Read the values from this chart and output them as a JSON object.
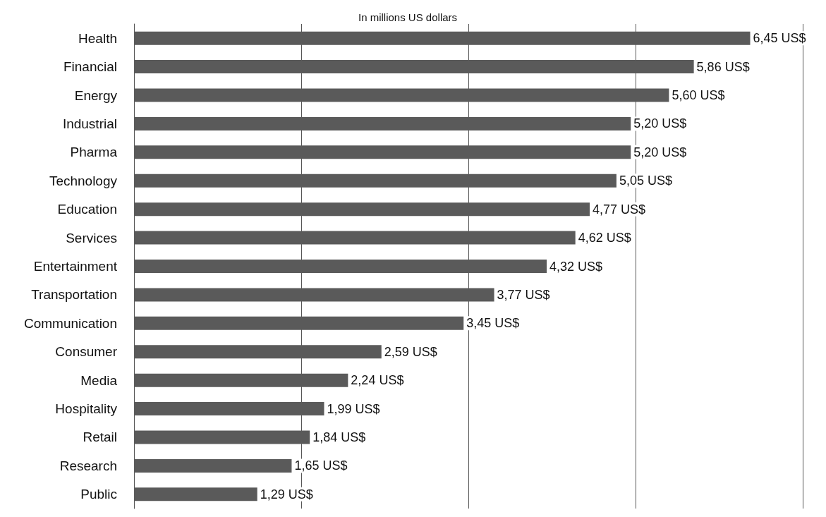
{
  "chart_data": {
    "type": "bar",
    "orientation": "horizontal",
    "title": "In millions US dollars",
    "categories": [
      "Health",
      "Financial",
      "Energy",
      "Industrial",
      "Pharma",
      "Technology",
      "Education",
      "Services",
      "Entertainment",
      "Transportation",
      "Communication",
      "Consumer",
      "Media",
      "Hospitality",
      "Retail",
      "Research",
      "Public"
    ],
    "values": [
      6.45,
      5.86,
      5.6,
      5.2,
      5.2,
      5.05,
      4.77,
      4.62,
      4.32,
      3.77,
      3.45,
      2.59,
      2.24,
      1.99,
      1.84,
      1.65,
      1.29
    ],
    "value_labels": [
      "6,45 US$",
      "5,86 US$",
      "5,60 US$",
      "5,20 US$",
      "5,20 US$",
      "5,05 US$",
      "4,77 US$",
      "4,62 US$",
      "4,32 US$",
      "3,77 US$",
      "3,45 US$",
      "2,59 US$",
      "2,24 US$",
      "1,99 US$",
      "1,84 US$",
      "1,65 US$",
      "1,29 US$"
    ],
    "color": "#5a5a5a",
    "xlim": [
      0,
      7
    ],
    "xticks": [
      {
        "value": 0,
        "label": null
      },
      {
        "value": 1.75,
        "label": null
      },
      {
        "value": 3.5,
        "label": null
      },
      {
        "value": 5.25,
        "label": null
      },
      {
        "value": 7,
        "label": null
      }
    ],
    "tick_labels": "y",
    "grid": "x"
  }
}
